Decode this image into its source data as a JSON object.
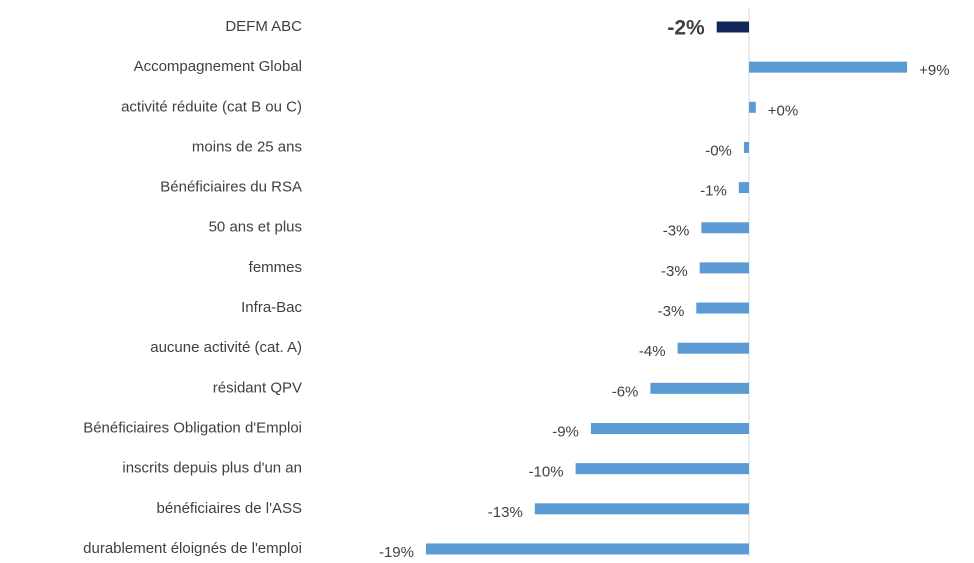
{
  "chart_data": {
    "type": "hbar",
    "categories": [
      "DEFM ABC",
      "Accompagnement Global",
      "activité réduite (cat B ou C)",
      "moins de 25 ans",
      "Bénéficiaires du RSA",
      "50 ans et plus",
      "femmes",
      "Infra-Bac",
      "aucune activité (cat. A)",
      "résidant QPV",
      "Bénéficiaires Obligation d'Emploi",
      "inscrits depuis plus d'un an",
      "bénéficiaires de l'ASS",
      "durablement éloignés de l'emploi"
    ],
    "values": [
      -1.9,
      9.3,
      0.4,
      -0.3,
      -0.6,
      -2.8,
      -2.9,
      -3.1,
      -4.2,
      -5.8,
      -9.3,
      -10.2,
      -12.6,
      -19.0
    ],
    "value_labels": [
      "-2%",
      "+9%",
      "+0%",
      "-0%",
      "-1%",
      "-3%",
      "-3%",
      "-3%",
      "-4%",
      "-6%",
      "-9%",
      "-10%",
      "-13%",
      "-19%"
    ],
    "colors": [
      "#12285a",
      "#5b9bd5",
      "#5b9bd5",
      "#5b9bd5",
      "#5b9bd5",
      "#5b9bd5",
      "#5b9bd5",
      "#5b9bd5",
      "#5b9bd5",
      "#5b9bd5",
      "#5b9bd5",
      "#5b9bd5",
      "#5b9bd5",
      "#5b9bd5"
    ],
    "xlim": [
      -20,
      11
    ]
  }
}
